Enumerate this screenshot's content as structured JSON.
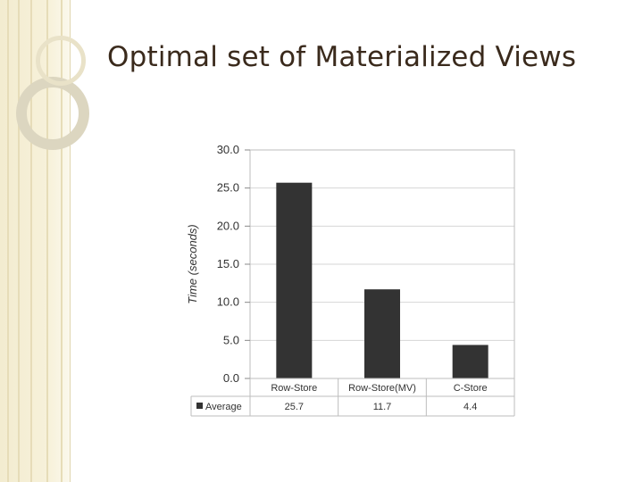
{
  "slide": {
    "title": "Optimal set of Materialized Views"
  },
  "theme": {
    "title_color": "#3a2a1c",
    "bar_color": "#333333",
    "band_color": "#f3ecd0"
  },
  "chart_data": {
    "type": "bar",
    "title": "",
    "xlabel": "",
    "ylabel": "Time (seconds)",
    "categories": [
      "Row-Store",
      "Row-Store(MV)",
      "C-Store"
    ],
    "series": [
      {
        "name": "Average",
        "values": [
          25.7,
          11.7,
          4.4
        ]
      }
    ],
    "ylim": [
      0,
      30
    ],
    "yticks": [
      "0.0",
      "5.0",
      "10.0",
      "15.0",
      "20.0",
      "25.0",
      "30.0"
    ],
    "table_values": [
      "25.7",
      "11.7",
      "4.4"
    ],
    "grid": true,
    "legend": "data-table-row"
  }
}
